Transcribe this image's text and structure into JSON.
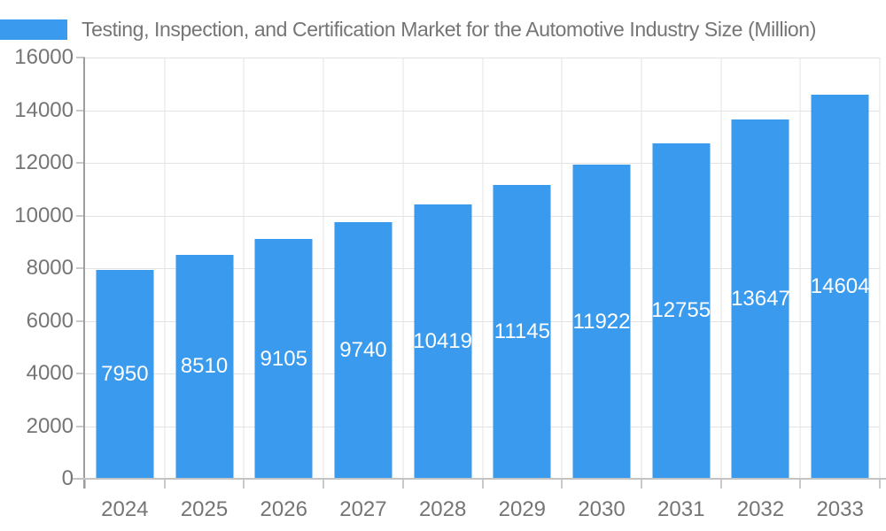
{
  "legend": {
    "label": "Testing, Inspection, and Certification Market for the Automotive Industry Size (Million)",
    "color": "#399AEE"
  },
  "colors": {
    "bar": "#399AEE",
    "axis_text": "#757575",
    "gridline": "#e3e3e3",
    "y_axis_line": "#9d9d9d",
    "x_axis_line": "#c4c4c4",
    "value_label": "#ffffff"
  },
  "chart_data": {
    "type": "bar",
    "title": "Testing, Inspection, and Certification Market for the Automotive Industry Size (Million)",
    "categories": [
      "2024",
      "2025",
      "2026",
      "2027",
      "2028",
      "2029",
      "2030",
      "2031",
      "2032",
      "2033"
    ],
    "series": [
      {
        "name": "Testing, Inspection, and Certification Market for the Automotive Industry Size (Million)",
        "values": [
          7950,
          8510,
          9105,
          9740,
          10419,
          11145,
          11922,
          12755,
          13647,
          14604
        ],
        "color": "#399AEE"
      }
    ],
    "xlabel": "",
    "ylabel": "",
    "ylim": [
      0,
      16000
    ],
    "yticks": [
      0,
      2000,
      4000,
      6000,
      8000,
      10000,
      12000,
      14000,
      16000
    ],
    "grid": true,
    "legend_position": "top-left",
    "value_labels": "inside bars, vertically centered, white"
  }
}
